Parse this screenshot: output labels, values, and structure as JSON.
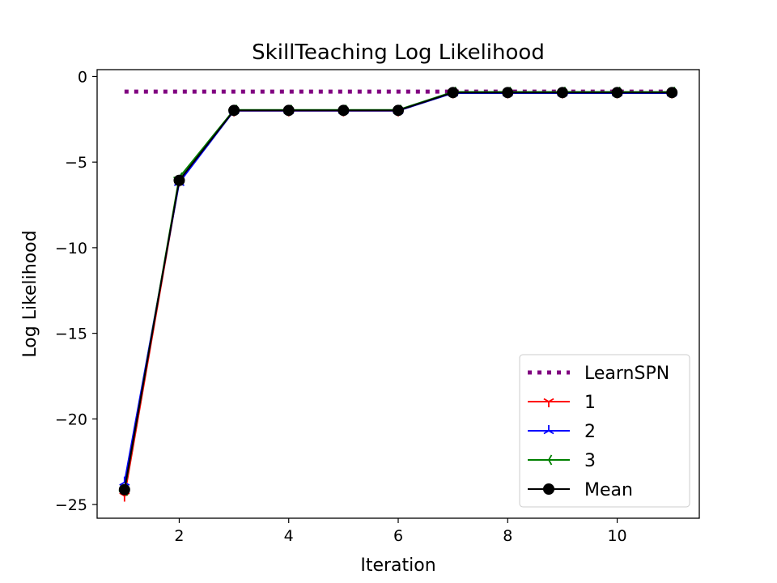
{
  "chart_data": {
    "type": "line",
    "title": "SkillTeaching Log Likelihood",
    "xlabel": "Iteration",
    "ylabel": "Log Likelihood",
    "xlim": [
      0.5,
      11.5
    ],
    "ylim": [
      -25.8,
      0.4
    ],
    "xticks": [
      2,
      4,
      6,
      8,
      10
    ],
    "yticks": [
      0,
      -5,
      -10,
      -15,
      -20,
      -25
    ],
    "xtick_labels": [
      "2",
      "4",
      "6",
      "8",
      "10"
    ],
    "ytick_labels": [
      "0",
      "−5",
      "−10",
      "−15",
      "−20",
      "−25"
    ],
    "grid": false,
    "legend_position": "lower-right",
    "x": [
      1,
      2,
      3,
      4,
      5,
      6,
      7,
      8,
      9,
      10,
      11
    ],
    "series": [
      {
        "name": "LearnSPN",
        "color": "#800080",
        "style": "dotted",
        "marker": "none",
        "values": [
          -0.88,
          -0.88,
          -0.88,
          -0.88,
          -0.88,
          -0.88,
          -0.88,
          -0.88,
          -0.88,
          -0.88,
          -0.88
        ]
      },
      {
        "name": "1",
        "color": "#ff0000",
        "style": "solid",
        "marker": "tri-down",
        "values": [
          -24.5,
          -6.1,
          -2.0,
          -2.0,
          -2.0,
          -2.0,
          -0.95,
          -0.95,
          -0.95,
          -0.95,
          -0.95
        ]
      },
      {
        "name": "2",
        "color": "#0000ff",
        "style": "solid",
        "marker": "tri-up",
        "values": [
          -23.7,
          -6.2,
          -2.0,
          -2.0,
          -2.0,
          -2.0,
          -0.97,
          -0.97,
          -0.97,
          -0.97,
          -0.97
        ]
      },
      {
        "name": "3",
        "color": "#008000",
        "style": "solid",
        "marker": "tri-left",
        "values": [
          -24.2,
          -5.9,
          -1.95,
          -1.95,
          -1.95,
          -1.95,
          -0.9,
          -0.9,
          -0.9,
          -0.9,
          -0.9
        ]
      },
      {
        "name": "Mean",
        "color": "#000000",
        "style": "solid",
        "marker": "circle",
        "values": [
          -24.13,
          -6.07,
          -1.98,
          -1.98,
          -1.98,
          -1.98,
          -0.94,
          -0.94,
          -0.94,
          -0.94,
          -0.94
        ]
      }
    ]
  }
}
